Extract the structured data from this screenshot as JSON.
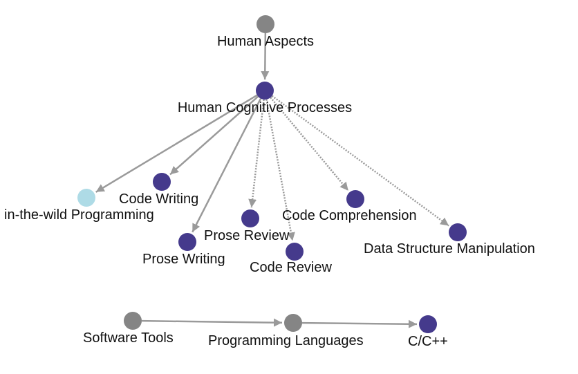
{
  "colors": {
    "gray_node": "#858585",
    "purple_node": "#453a8c",
    "light_node": "#aedbe6",
    "edge": "#9a9a9a",
    "label": "#111111"
  },
  "nodes": [
    {
      "id": "human-aspects",
      "label": "Human Aspects",
      "color": "gray_node"
    },
    {
      "id": "human-cognitive",
      "label": "Human Cognitive Processes",
      "color": "purple_node"
    },
    {
      "id": "in-the-wild",
      "label": "in-the-wild Programming",
      "color": "light_node"
    },
    {
      "id": "code-writing",
      "label": "Code Writing",
      "color": "purple_node"
    },
    {
      "id": "prose-writing",
      "label": "Prose Writing",
      "color": "purple_node"
    },
    {
      "id": "prose-review",
      "label": "Prose Review",
      "color": "purple_node"
    },
    {
      "id": "code-review",
      "label": "Code Review",
      "color": "purple_node"
    },
    {
      "id": "code-comprehension",
      "label": "Code Comprehension",
      "color": "purple_node"
    },
    {
      "id": "data-structure",
      "label": "Data Structure Manipulation",
      "color": "purple_node"
    },
    {
      "id": "software-tools",
      "label": "Software Tools",
      "color": "gray_node"
    },
    {
      "id": "programming-languages",
      "label": "Programming Languages",
      "color": "gray_node"
    },
    {
      "id": "c-cpp",
      "label": "C/C++",
      "color": "purple_node"
    }
  ],
  "edges": [
    {
      "from": "human-aspects",
      "to": "human-cognitive",
      "style": "solid"
    },
    {
      "from": "human-cognitive",
      "to": "in-the-wild",
      "style": "solid"
    },
    {
      "from": "human-cognitive",
      "to": "code-writing",
      "style": "solid"
    },
    {
      "from": "human-cognitive",
      "to": "prose-writing",
      "style": "solid"
    },
    {
      "from": "human-cognitive",
      "to": "prose-review",
      "style": "dotted"
    },
    {
      "from": "human-cognitive",
      "to": "code-review",
      "style": "dotted"
    },
    {
      "from": "human-cognitive",
      "to": "code-comprehension",
      "style": "dotted"
    },
    {
      "from": "human-cognitive",
      "to": "data-structure",
      "style": "dotted"
    },
    {
      "from": "software-tools",
      "to": "programming-languages",
      "style": "solid"
    },
    {
      "from": "programming-languages",
      "to": "c-cpp",
      "style": "solid"
    }
  ]
}
